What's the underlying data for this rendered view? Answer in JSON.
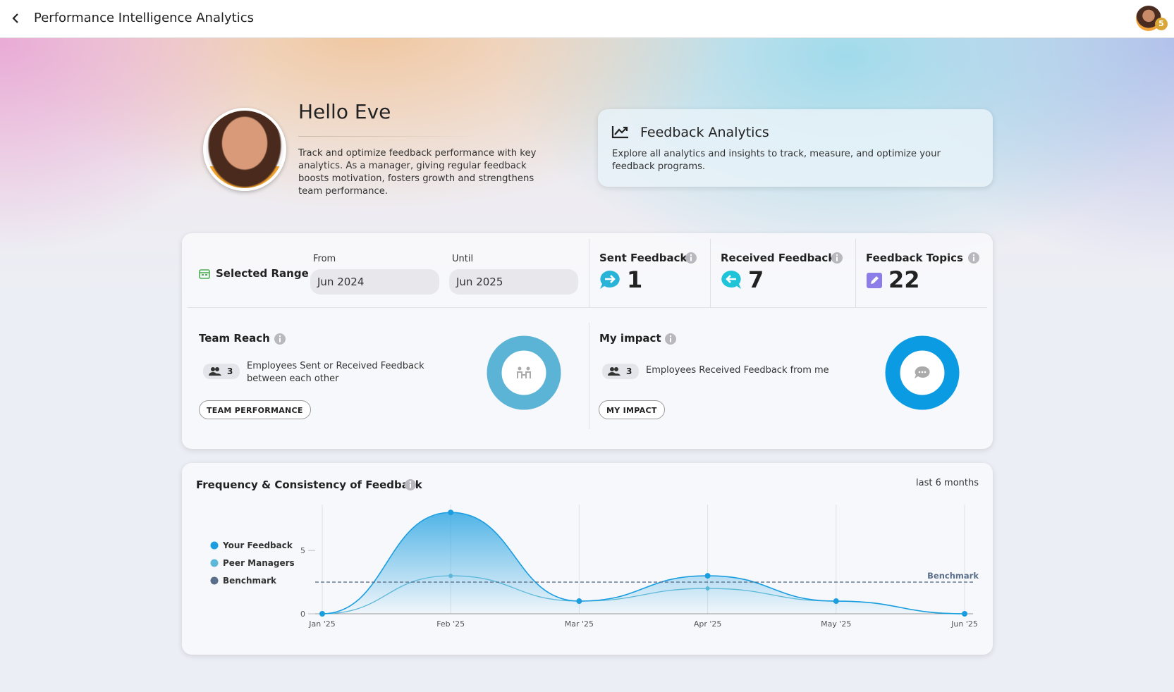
{
  "header": {
    "title": "Performance Intelligence Analytics",
    "badge": 5
  },
  "greeting": {
    "title": "Hello Eve",
    "text": "Track and optimize feedback performance with key analytics. As a manager, giving regular feedback boosts motivation, fosters growth and strengthens team performance."
  },
  "feedback_analytics": {
    "title": "Feedback Analytics",
    "text": "Explore all analytics and insights to track, measure, and optimize your feedback programs."
  },
  "range": {
    "label": "Selected Range",
    "from_label": "From",
    "from": "Jun 2024",
    "until_label": "Until",
    "until": "Jun 2025"
  },
  "stats": [
    {
      "label": "Sent Feedback",
      "value": 1
    },
    {
      "label": "Received Feedback",
      "value": 7
    },
    {
      "label": "Feedback Topics",
      "value": 22
    }
  ],
  "team_reach": {
    "title": "Team Reach",
    "count": 3,
    "text": "Employees Sent or Received Feedback between each other",
    "button": "TEAM PERFORMANCE"
  },
  "my_impact": {
    "title": "My impact",
    "count": 3,
    "text": "Employees Received Feedback from me",
    "button": "MY IMPACT"
  },
  "chart_data": {
    "type": "line",
    "title": "Frequency & Consistency of Feedback",
    "period": "last 6 months",
    "categories": [
      "Jan '25",
      "Feb '25",
      "Mar '25",
      "Apr '25",
      "May '25",
      "Jun '25"
    ],
    "series": [
      {
        "name": "Your Feedback",
        "color": "#1a9ee0",
        "values": [
          0,
          8,
          1,
          3,
          1,
          0
        ]
      },
      {
        "name": "Peer Managers",
        "color": "#5cb8d8",
        "values": [
          0,
          3,
          1,
          2,
          1,
          0
        ]
      }
    ],
    "benchmark": {
      "name": "Benchmark",
      "value": 2.5,
      "color": "#5a6f8a"
    },
    "ylim": [
      0,
      8.4
    ],
    "yticks": [
      0,
      5
    ]
  }
}
